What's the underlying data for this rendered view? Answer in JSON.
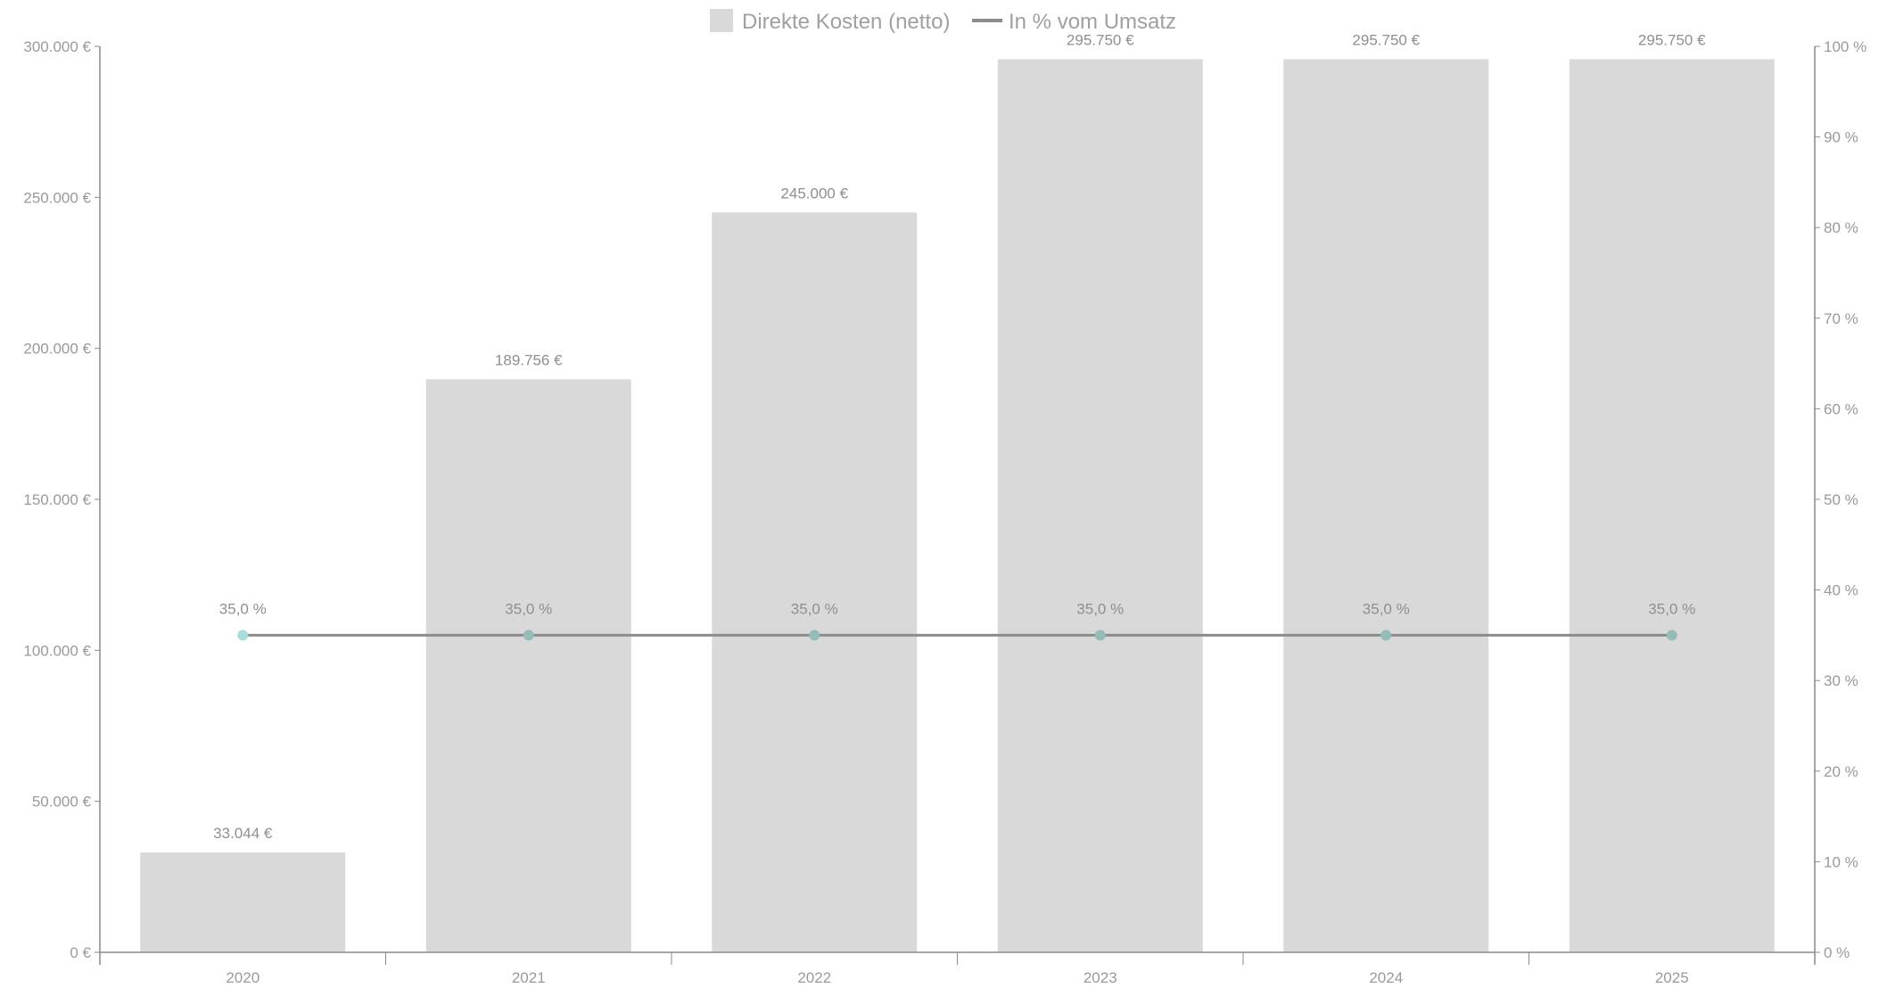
{
  "chart_data": {
    "type": "bar",
    "categories": [
      "2020",
      "2021",
      "2022",
      "2023",
      "2024",
      "2025"
    ],
    "series": [
      {
        "name": "Direkte Kosten (netto)",
        "type": "bar",
        "axis": "left",
        "values": [
          33044,
          189756,
          245000,
          295750,
          295750,
          295750
        ],
        "labels": [
          "33.044 €",
          "189.756 €",
          "245.000 €",
          "295.750 €",
          "295.750 €",
          "295.750 €"
        ]
      },
      {
        "name": "In % vom Umsatz",
        "type": "line",
        "axis": "right",
        "values": [
          35,
          35,
          35,
          35,
          35,
          35
        ],
        "labels": [
          "35,0 %",
          "35,0 %",
          "35,0 %",
          "35,0 %",
          "35,0 %",
          "35,0 %"
        ]
      }
    ],
    "ylim": [
      0,
      300000
    ],
    "yticks": [
      "0 €",
      "50.000 €",
      "100.000 €",
      "150.000 €",
      "200.000 €",
      "250.000 €",
      "300.000 €"
    ],
    "y2lim": [
      0,
      100
    ],
    "y2ticks": [
      "0 %",
      "10 %",
      "20 %",
      "30 %",
      "40 %",
      "50 %",
      "60 %",
      "70 %",
      "80 %",
      "90 %",
      "100 %"
    ],
    "legend_position": "top",
    "grid": false,
    "colors": {
      "bar": "#d9d9d9",
      "line": "#8c8c8c",
      "marker_first": "#a9ddd9",
      "marker": "#95bcb9",
      "axis": "#8a8a8a"
    }
  }
}
